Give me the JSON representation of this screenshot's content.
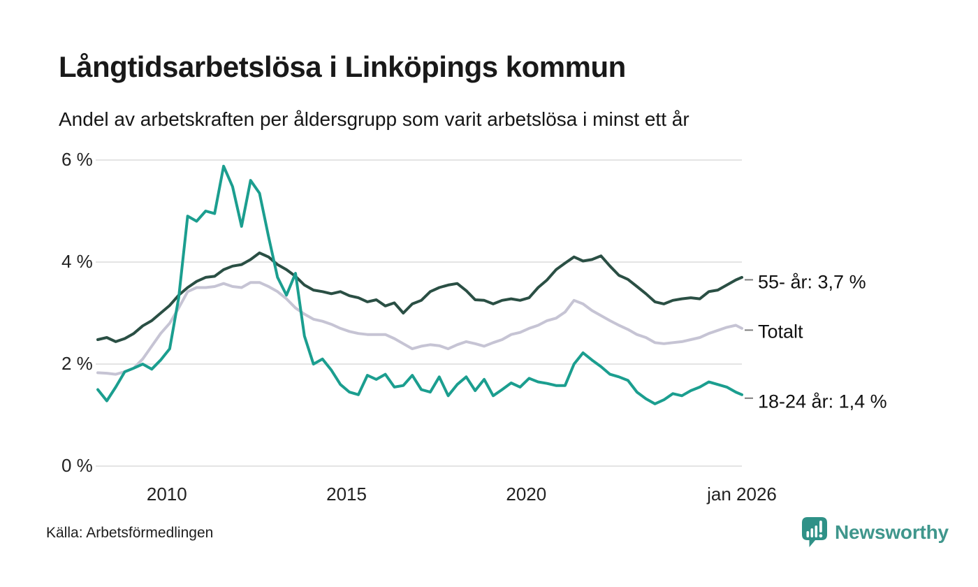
{
  "header": {
    "title": "Långtidsarbetslösa i Linköpings kommun",
    "subtitle": "Andel av arbetskraften per åldersgrupp som varit arbetslösa i minst ett år"
  },
  "chart_data": {
    "type": "line",
    "title": "Långtidsarbetslösa i Linköpings kommun",
    "subtitle": "Andel av arbetskraften per åldersgrupp som varit arbetslösa i minst ett år",
    "x_unit": "decimal-year",
    "xlim": [
      2008.08,
      2026.0
    ],
    "ylim": [
      0,
      6.2
    ],
    "grid": "horizontal",
    "legend_position": "line-end-labels-right",
    "yticks": [
      {
        "value": 6,
        "label": "6 %"
      },
      {
        "value": 4,
        "label": "4 %"
      },
      {
        "value": 2,
        "label": "2 %"
      },
      {
        "value": 0,
        "label": "0 %"
      }
    ],
    "xticks": [
      {
        "value": 2010.0,
        "label": "2010"
      },
      {
        "value": 2015.0,
        "label": "2015"
      },
      {
        "value": 2020.0,
        "label": "2020"
      },
      {
        "value": 2026.0,
        "label": "jan 2026"
      }
    ],
    "x": [
      2008.08,
      2008.33,
      2008.58,
      2008.83,
      2009.08,
      2009.33,
      2009.58,
      2009.83,
      2010.08,
      2010.33,
      2010.58,
      2010.83,
      2011.08,
      2011.33,
      2011.58,
      2011.83,
      2012.08,
      2012.33,
      2012.58,
      2012.83,
      2013.08,
      2013.33,
      2013.58,
      2013.83,
      2014.08,
      2014.33,
      2014.58,
      2014.83,
      2015.08,
      2015.33,
      2015.58,
      2015.83,
      2016.08,
      2016.33,
      2016.58,
      2016.83,
      2017.08,
      2017.33,
      2017.58,
      2017.83,
      2018.08,
      2018.33,
      2018.58,
      2018.83,
      2019.08,
      2019.33,
      2019.58,
      2019.83,
      2020.08,
      2020.33,
      2020.58,
      2020.83,
      2021.08,
      2021.33,
      2021.58,
      2021.83,
      2022.08,
      2022.33,
      2022.58,
      2022.83,
      2023.08,
      2023.33,
      2023.58,
      2023.83,
      2024.08,
      2024.33,
      2024.58,
      2024.83,
      2025.08,
      2025.33,
      2025.58,
      2025.83,
      2026.0
    ],
    "series": [
      {
        "name": "55- år",
        "end_label": "55- år: 3,7 %",
        "latest_value": 3.7,
        "color": "#2a4f44",
        "values": [
          2.48,
          2.52,
          2.44,
          2.5,
          2.6,
          2.75,
          2.85,
          3.0,
          3.15,
          3.35,
          3.5,
          3.62,
          3.7,
          3.72,
          3.85,
          3.92,
          3.95,
          4.05,
          4.18,
          4.1,
          3.95,
          3.85,
          3.72,
          3.55,
          3.45,
          3.42,
          3.38,
          3.42,
          3.34,
          3.3,
          3.22,
          3.26,
          3.14,
          3.2,
          3.0,
          3.18,
          3.25,
          3.42,
          3.5,
          3.55,
          3.58,
          3.44,
          3.26,
          3.25,
          3.18,
          3.25,
          3.28,
          3.25,
          3.3,
          3.5,
          3.65,
          3.85,
          3.98,
          4.1,
          4.02,
          4.05,
          4.12,
          3.92,
          3.74,
          3.66,
          3.52,
          3.38,
          3.22,
          3.18,
          3.25,
          3.28,
          3.3,
          3.28,
          3.42,
          3.45,
          3.55,
          3.65,
          3.7
        ]
      },
      {
        "name": "Totalt",
        "end_label": "Totalt",
        "latest_value": 2.7,
        "color": "#c6c4d4",
        "values": [
          1.83,
          1.82,
          1.8,
          1.85,
          1.92,
          2.1,
          2.35,
          2.6,
          2.8,
          3.1,
          3.42,
          3.5,
          3.5,
          3.52,
          3.58,
          3.52,
          3.5,
          3.6,
          3.6,
          3.52,
          3.42,
          3.28,
          3.1,
          2.98,
          2.88,
          2.84,
          2.78,
          2.7,
          2.64,
          2.6,
          2.58,
          2.58,
          2.58,
          2.5,
          2.4,
          2.3,
          2.35,
          2.38,
          2.36,
          2.3,
          2.38,
          2.44,
          2.4,
          2.35,
          2.42,
          2.48,
          2.58,
          2.62,
          2.7,
          2.76,
          2.85,
          2.9,
          3.02,
          3.25,
          3.18,
          3.05,
          2.95,
          2.85,
          2.76,
          2.68,
          2.58,
          2.52,
          2.42,
          2.4,
          2.42,
          2.44,
          2.48,
          2.52,
          2.6,
          2.66,
          2.72,
          2.76,
          2.7
        ]
      },
      {
        "name": "18-24 år",
        "end_label": "18-24 år: 1,4 %",
        "latest_value": 1.4,
        "color": "#1b9e8f",
        "values": [
          1.5,
          1.28,
          1.55,
          1.85,
          1.92,
          2.0,
          1.9,
          2.08,
          2.3,
          3.3,
          4.9,
          4.8,
          5.0,
          4.95,
          5.88,
          5.48,
          4.7,
          5.6,
          5.35,
          4.5,
          3.7,
          3.35,
          3.78,
          2.55,
          2.0,
          2.1,
          1.88,
          1.6,
          1.45,
          1.4,
          1.78,
          1.7,
          1.8,
          1.55,
          1.58,
          1.78,
          1.5,
          1.45,
          1.75,
          1.38,
          1.6,
          1.75,
          1.48,
          1.7,
          1.38,
          1.5,
          1.63,
          1.55,
          1.72,
          1.65,
          1.62,
          1.58,
          1.58,
          2.0,
          2.22,
          2.08,
          1.95,
          1.8,
          1.75,
          1.68,
          1.45,
          1.32,
          1.22,
          1.3,
          1.42,
          1.38,
          1.48,
          1.55,
          1.65,
          1.6,
          1.55,
          1.45,
          1.4
        ]
      }
    ]
  },
  "footer": {
    "source": "Källa: Arbetsförmedlingen",
    "brand": "Newsworthy",
    "brand_color": "#3f968c"
  },
  "colors": {
    "background": "#ffffff",
    "grid": "#e4e4e4",
    "text": "#1a1a1a",
    "leader_dash": "#7d7d7d",
    "logo_teal": "#2f9187"
  }
}
